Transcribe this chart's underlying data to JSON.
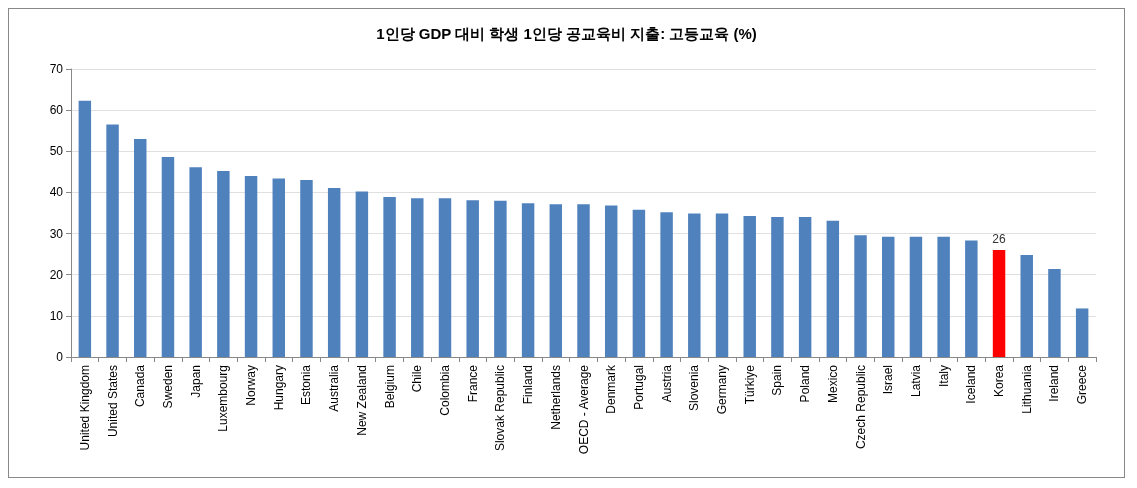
{
  "chart_data": {
    "type": "bar",
    "title": "1인당 GDP 대비 학생 1인당 공교육비 지출: 고등교육 (%)",
    "categories": [
      "United Kingdom",
      "United States",
      "Canada",
      "Sweden",
      "Japan",
      "Luxembourg",
      "Norway",
      "Hungary",
      "Estonia",
      "Australia",
      "New Zealand",
      "Belgium",
      "Chile",
      "Colombia",
      "France",
      "Slovak Republic",
      "Finland",
      "Netherlands",
      "OECD - Average",
      "Denmark",
      "Portugal",
      "Austria",
      "Slovenia",
      "Germany",
      "Türkiye",
      "Spain",
      "Poland",
      "Mexico",
      "Czech Republic",
      "Israel",
      "Latvia",
      "Italy",
      "Iceland",
      "Korea",
      "Lithuania",
      "Ireland",
      "Greece"
    ],
    "values": [
      62.3,
      56.5,
      53,
      48.6,
      46.1,
      45.2,
      44,
      43.4,
      43,
      41.1,
      40.2,
      38.9,
      38.6,
      38.6,
      38.1,
      38,
      37.4,
      37.1,
      37.1,
      36.8,
      35.8,
      35.2,
      34.9,
      34.9,
      34.3,
      34,
      34,
      33.1,
      29.6,
      29.2,
      29.2,
      29.2,
      28.3,
      26,
      24.8,
      21.4,
      11.8
    ],
    "colors": [
      "#4f81bd",
      "#4f81bd",
      "#4f81bd",
      "#4f81bd",
      "#4f81bd",
      "#4f81bd",
      "#4f81bd",
      "#4f81bd",
      "#4f81bd",
      "#4f81bd",
      "#4f81bd",
      "#4f81bd",
      "#4f81bd",
      "#4f81bd",
      "#4f81bd",
      "#4f81bd",
      "#4f81bd",
      "#4f81bd",
      "#4f81bd",
      "#4f81bd",
      "#4f81bd",
      "#4f81bd",
      "#4f81bd",
      "#4f81bd",
      "#4f81bd",
      "#4f81bd",
      "#4f81bd",
      "#4f81bd",
      "#4f81bd",
      "#4f81bd",
      "#4f81bd",
      "#4f81bd",
      "#4f81bd",
      "#ff0000",
      "#4f81bd",
      "#4f81bd",
      "#4f81bd"
    ],
    "value_labels": [
      null,
      null,
      null,
      null,
      null,
      null,
      null,
      null,
      null,
      null,
      null,
      null,
      null,
      null,
      null,
      null,
      null,
      null,
      null,
      null,
      null,
      null,
      null,
      null,
      null,
      null,
      null,
      null,
      null,
      null,
      null,
      null,
      null,
      "26",
      null,
      null,
      null
    ],
    "ylim": [
      0,
      70
    ],
    "yticks": [
      0,
      10,
      20,
      30,
      40,
      50,
      60,
      70
    ],
    "grid": "y"
  }
}
